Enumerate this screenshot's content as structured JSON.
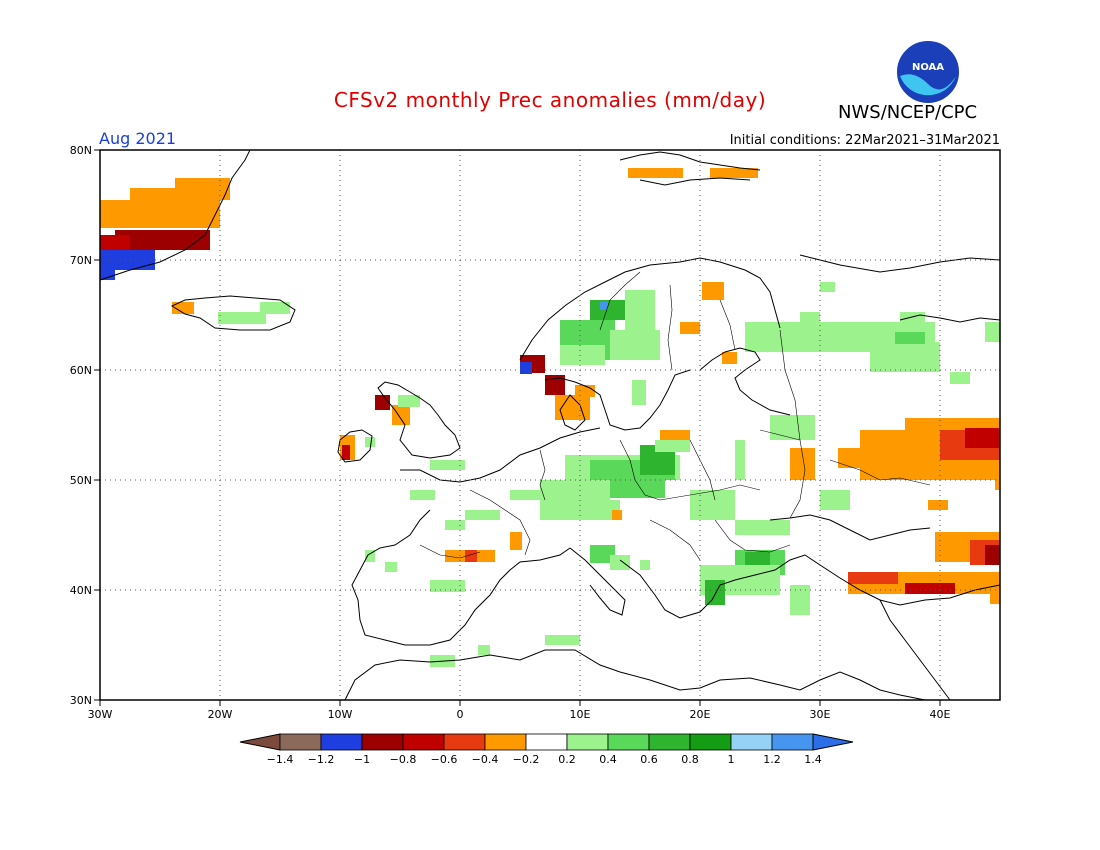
{
  "title": "CFSv2 monthly Prec anomalies (mm/day)",
  "agency": "NWS/NCEP/CPC",
  "logo_text": "NOAA",
  "month": "Aug 2021",
  "initial_conditions": "Initial conditions: 22Mar2021–31Mar2021",
  "lat_labels": [
    "80N",
    "70N",
    "60N",
    "50N",
    "40N",
    "30N"
  ],
  "lon_labels": [
    "30W",
    "20W",
    "10W",
    "0",
    "10E",
    "20E",
    "30E",
    "40E"
  ],
  "colorbar": {
    "colors": [
      "#8b6a5c",
      "#1f3ee0",
      "#9c0000",
      "#c00000",
      "#e83a10",
      "#ff9900",
      "#ffffff",
      "#9cf28c",
      "#5ad85a",
      "#2eb42e",
      "#149c14",
      "#96d2f5",
      "#4696f0"
    ],
    "labels": [
      "−1.4",
      "−1.2",
      "−1",
      "−0.8",
      "−0.6",
      "−0.4",
      "−0.2",
      "0.2",
      "0.4",
      "0.6",
      "0.8",
      "1",
      "1.2",
      "1.4"
    ],
    "below_color": "#7b4a3c",
    "above_color": "#2c6ee8"
  },
  "colors": {
    "title": "#e00000",
    "month": "#1a3fe0",
    "frame": "#000000"
  }
}
